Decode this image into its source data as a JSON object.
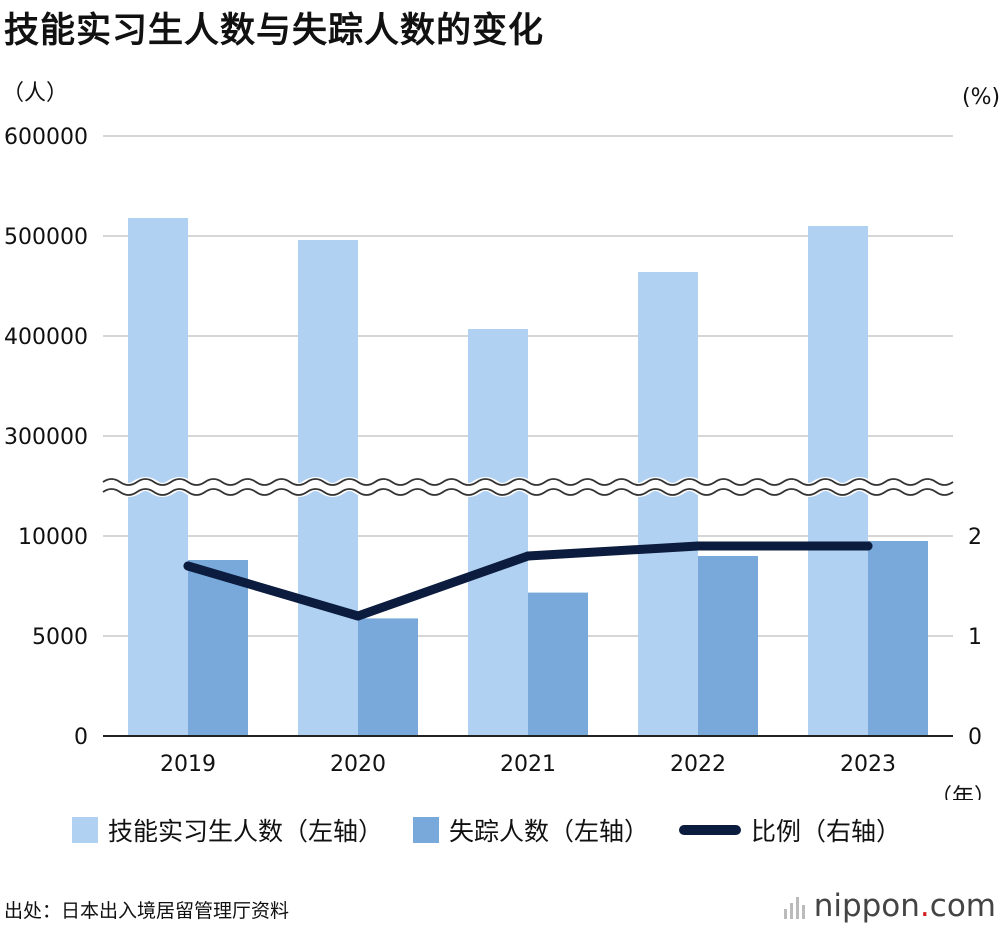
{
  "title": "技能实习生人数与失踪人数的变化",
  "chart_data": {
    "type": "bar",
    "categories": [
      "2019",
      "2020",
      "2021",
      "2022",
      "2023"
    ],
    "series": [
      {
        "name": "技能实习生人数（左轴）",
        "axis": "left",
        "values": [
          518000,
          496000,
          407000,
          464000,
          510000
        ],
        "color": "#b0d1f2"
      },
      {
        "name": "失踪人数（左轴）",
        "axis": "left",
        "values": [
          8800,
          5880,
          7170,
          9000,
          9750
        ],
        "color": "#78a9da"
      },
      {
        "name": "比例（右轴）",
        "axis": "right",
        "type": "line",
        "values": [
          1.7,
          1.2,
          1.8,
          1.9,
          1.9
        ],
        "color": "#0c1c3e"
      }
    ],
    "left_axis": {
      "unit_label": "（人）",
      "upper_ticks": [
        "600000",
        "500000",
        "400000",
        "300000"
      ],
      "lower_ticks": [
        "10000",
        "5000",
        "0"
      ],
      "broken": true,
      "lower_range": [
        0,
        10000
      ],
      "upper_range": [
        300000,
        600000
      ]
    },
    "right_axis": {
      "unit_label": "(%)",
      "ticks": [
        "2",
        "1",
        "0"
      ],
      "range": [
        0,
        2
      ]
    },
    "x_unit_label": "（年）",
    "grid": true,
    "legend_position": "bottom"
  },
  "legend": {
    "items": [
      {
        "label": "技能实习生人数（左轴）",
        "color": "#b0d1f2",
        "kind": "box"
      },
      {
        "label": "失踪人数（左轴）",
        "color": "#78a9da",
        "kind": "box"
      },
      {
        "label": "比例（右轴）",
        "color": "#0c1c3e",
        "kind": "line"
      }
    ]
  },
  "source": "出处：日本出入境居留管理厅资料",
  "logo": {
    "name": "nippon",
    "dot": ".",
    "suffix": "com"
  }
}
